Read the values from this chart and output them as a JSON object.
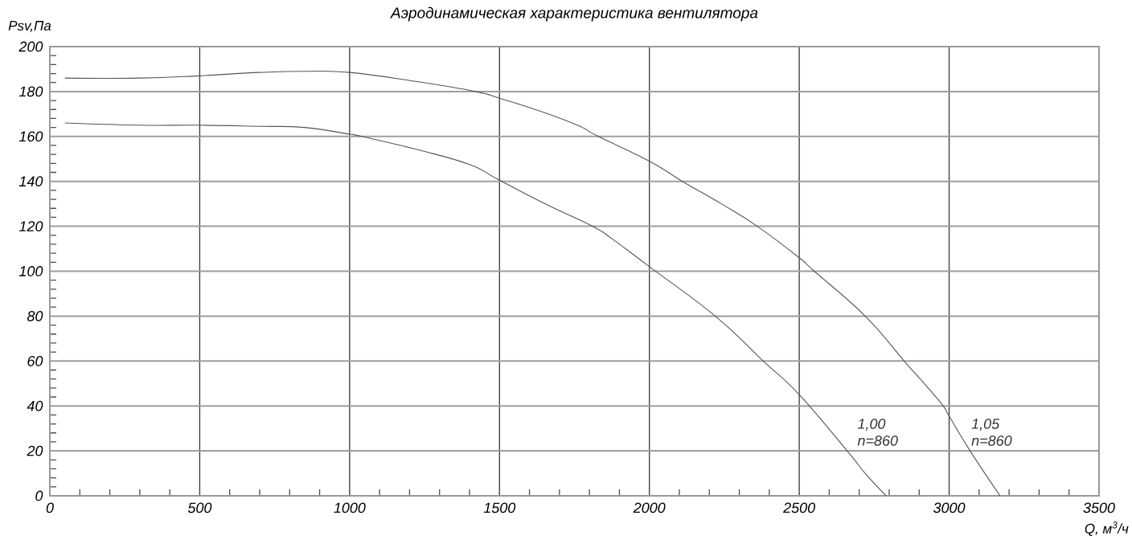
{
  "chart_data": {
    "type": "line",
    "title": "Аэродинамическая характеристика вентилятора",
    "xlabel": "Q, м$^{3}$/ч",
    "ylabel": "Psv,Па",
    "series": [
      {
        "name": "1,00 n=860",
        "color": "#555555",
        "x": [
          50,
          300,
          500,
          700,
          850,
          1000,
          1040,
          1230,
          1400,
          1500,
          1660,
          1810,
          1880,
          2000,
          2220,
          2380,
          2500,
          2660,
          2720,
          2790
        ],
        "values": [
          166,
          165,
          165,
          164.5,
          164,
          161,
          160,
          154,
          147.5,
          140.5,
          129.5,
          120,
          114,
          102,
          80,
          60,
          45,
          20,
          10,
          0
        ]
      },
      {
        "name": "1,05 n=860",
        "color": "#555555",
        "x": [
          50,
          300,
          500,
          700,
          850,
          1000,
          1220,
          1420,
          1500,
          1630,
          1760,
          1830,
          2000,
          2110,
          2240,
          2360,
          2500,
          2550,
          2720,
          2850,
          2920,
          2980,
          3000,
          3070,
          3170
        ],
        "values": [
          186,
          186,
          187,
          188.5,
          189,
          188.5,
          184.5,
          180,
          177,
          171.5,
          165,
          160,
          149,
          140,
          130,
          120,
          106,
          100,
          80,
          60,
          49.5,
          40,
          35.5,
          20,
          0
        ]
      }
    ],
    "xlim": [
      0,
      3500
    ],
    "ylim": [
      0,
      200
    ],
    "xticks": [
      0,
      {
        "value": 100,
        "label": null
      },
      {
        "value": 200,
        "label": null
      },
      {
        "value": 300,
        "label": null
      },
      {
        "value": 400,
        "label": null
      },
      500,
      {
        "value": 600,
        "label": null
      },
      {
        "value": 700,
        "label": null
      },
      {
        "value": 800,
        "label": null
      },
      {
        "value": 900,
        "label": null
      },
      1000,
      {
        "value": 1100,
        "label": null
      },
      {
        "value": 1200,
        "label": null
      },
      {
        "value": 1300,
        "label": null
      },
      {
        "value": 1400,
        "label": null
      },
      1500,
      {
        "value": 1600,
        "label": null
      },
      {
        "value": 1700,
        "label": null
      },
      {
        "value": 1800,
        "label": null
      },
      {
        "value": 1900,
        "label": null
      },
      2000,
      {
        "value": 2100,
        "label": null
      },
      {
        "value": 2200,
        "label": null
      },
      {
        "value": 2300,
        "label": null
      },
      {
        "value": 2400,
        "label": null
      },
      2500,
      {
        "value": 2600,
        "label": null
      },
      {
        "value": 2700,
        "label": null
      },
      {
        "value": 2800,
        "label": null
      },
      {
        "value": 2900,
        "label": null
      },
      3000,
      {
        "value": 3100,
        "label": null
      },
      {
        "value": 3200,
        "label": null
      },
      {
        "value": 3300,
        "label": null
      },
      {
        "value": 3400,
        "label": null
      },
      3500
    ],
    "yticks": [
      0,
      {
        "value": 4,
        "label": null
      },
      {
        "value": 8,
        "label": null
      },
      {
        "value": 12,
        "label": null
      },
      {
        "value": 16,
        "label": null
      },
      20,
      {
        "value": 24,
        "label": null
      },
      {
        "value": 28,
        "label": null
      },
      {
        "value": 32,
        "label": null
      },
      {
        "value": 36,
        "label": null
      },
      40,
      {
        "value": 44,
        "label": null
      },
      {
        "value": 48,
        "label": null
      },
      {
        "value": 52,
        "label": null
      },
      {
        "value": 56,
        "label": null
      },
      60,
      {
        "value": 64,
        "label": null
      },
      {
        "value": 68,
        "label": null
      },
      {
        "value": 72,
        "label": null
      },
      {
        "value": 76,
        "label": null
      },
      80,
      {
        "value": 84,
        "label": null
      },
      {
        "value": 88,
        "label": null
      },
      {
        "value": 92,
        "label": null
      },
      {
        "value": 96,
        "label": null
      },
      100,
      {
        "value": 104,
        "label": null
      },
      {
        "value": 108,
        "label": null
      },
      {
        "value": 112,
        "label": null
      },
      {
        "value": 116,
        "label": null
      },
      120,
      {
        "value": 124,
        "label": null
      },
      {
        "value": 128,
        "label": null
      },
      {
        "value": 132,
        "label": null
      },
      {
        "value": 136,
        "label": null
      },
      140,
      {
        "value": 144,
        "label": null
      },
      {
        "value": 148,
        "label": null
      },
      {
        "value": 152,
        "label": null
      },
      {
        "value": 156,
        "label": null
      },
      160,
      {
        "value": 164,
        "label": null
      },
      {
        "value": 168,
        "label": null
      },
      {
        "value": 172,
        "label": null
      },
      {
        "value": 176,
        "label": null
      },
      180,
      {
        "value": 184,
        "label": null
      },
      {
        "value": 188,
        "label": null
      },
      {
        "value": 192,
        "label": null
      },
      {
        "value": 196,
        "label": null
      },
      200
    ],
    "grid": true,
    "legend": false,
    "marker": "none",
    "line_style": "solid"
  }
}
